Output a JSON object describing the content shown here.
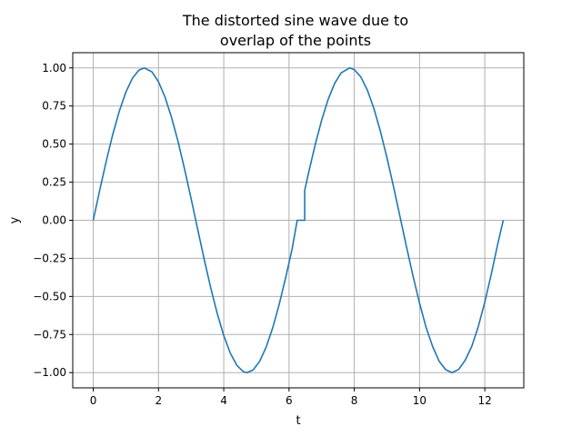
{
  "chart_data": {
    "type": "line",
    "title_lines": [
      "The distorted sine wave due to",
      "overlap of the points"
    ],
    "xlabel": "t",
    "ylabel": "y",
    "xlim": [
      -0.628,
      13.195
    ],
    "ylim": [
      -1.1,
      1.1
    ],
    "xticks": [
      0,
      2,
      4,
      6,
      8,
      10,
      12
    ],
    "xtick_labels": [
      "0",
      "2",
      "4",
      "6",
      "8",
      "10",
      "12"
    ],
    "yticks": [
      -1.0,
      -0.75,
      -0.5,
      -0.25,
      0.0,
      0.25,
      0.5,
      0.75,
      1.0
    ],
    "ytick_labels": [
      "−1.00",
      "−0.75",
      "−0.50",
      "−0.25",
      "0.00",
      "0.25",
      "0.50",
      "0.75",
      "1.00"
    ],
    "grid": true,
    "line_color": "#1f77b4",
    "series": [
      {
        "x": [
          0,
          0.2,
          0.4,
          0.6,
          0.8,
          1.0,
          1.2,
          1.4,
          1.5708,
          1.8,
          2.0,
          2.2,
          2.4,
          2.6,
          2.8,
          3.0,
          3.1416,
          3.4,
          3.6,
          3.8,
          4.0,
          4.2,
          4.4,
          4.6,
          4.7124,
          4.9,
          5.1,
          5.3,
          5.5,
          5.7,
          5.9,
          6.1,
          6.25,
          6.35,
          6.45,
          6.48,
          6.48,
          6.6,
          6.8,
          7.0,
          7.2,
          7.4,
          7.6,
          7.854,
          8.0,
          8.2,
          8.4,
          8.6,
          8.8,
          9.0,
          9.2,
          9.4,
          9.6,
          9.8,
          10.0,
          10.2,
          10.4,
          10.6,
          10.8,
          10.9956,
          11.2,
          11.4,
          11.6,
          11.8,
          12.0,
          12.2,
          12.4,
          12.566
        ],
        "y": [
          0,
          0.199,
          0.389,
          0.565,
          0.717,
          0.841,
          0.932,
          0.985,
          1.0,
          0.974,
          0.909,
          0.808,
          0.675,
          0.516,
          0.335,
          0.141,
          0.0,
          -0.256,
          -0.443,
          -0.612,
          -0.757,
          -0.872,
          -0.952,
          -0.994,
          -1.0,
          -0.982,
          -0.926,
          -0.832,
          -0.706,
          -0.551,
          -0.374,
          -0.183,
          0.0,
          0.0,
          0.0,
          0.0,
          0.196,
          0.312,
          0.494,
          0.657,
          0.794,
          0.899,
          0.968,
          1.0,
          0.989,
          0.941,
          0.855,
          0.734,
          0.585,
          0.412,
          0.223,
          0.025,
          -0.174,
          -0.366,
          -0.544,
          -0.703,
          -0.828,
          -0.925,
          -0.981,
          -1.0,
          -0.979,
          -0.918,
          -0.828,
          -0.698,
          -0.537,
          -0.352,
          -0.152,
          0.0
        ]
      }
    ]
  }
}
